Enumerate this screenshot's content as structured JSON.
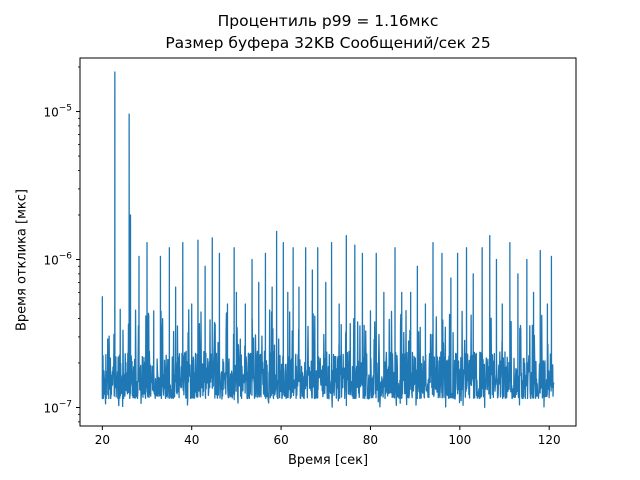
{
  "chart_data": {
    "type": "line",
    "title_lines": [
      "Процентиль p99 = 1.16мкс",
      "Размер буфера 32KB Сообщений/сек 25"
    ],
    "xlabel": "Время [сек]",
    "ylabel": "Время отклика [мкс]",
    "xlim": [
      15,
      126
    ],
    "ylim": [
      7.5e-08,
      2.3e-05
    ],
    "yscale": "log",
    "grid": false,
    "x_ticks": [
      20,
      40,
      60,
      80,
      100,
      120
    ],
    "y_ticks": [
      {
        "value": 1e-07,
        "base": "10",
        "exp": "−7"
      },
      {
        "value": 1e-06,
        "base": "10",
        "exp": "−6"
      },
      {
        "value": 1e-05,
        "base": "10",
        "exp": "−5"
      }
    ],
    "series": [
      {
        "color": "#1f77b4",
        "x_range": [
          20,
          121
        ],
        "baseline_range": [
          1.15e-07,
          2.4e-07
        ],
        "peaks": [
          {
            "x": 20.0,
            "y": 5.6e-07
          },
          {
            "x": 21.2,
            "y": 2.9e-07
          },
          {
            "x": 22.8,
            "y": 1.85e-05
          },
          {
            "x": 24.0,
            "y": 4.6e-07
          },
          {
            "x": 26.0,
            "y": 9.6e-06
          },
          {
            "x": 26.3,
            "y": 2e-06
          },
          {
            "x": 28.2,
            "y": 1.05e-06
          },
          {
            "x": 30.0,
            "y": 1.3e-06
          },
          {
            "x": 31.5,
            "y": 4.5e-07
          },
          {
            "x": 33.0,
            "y": 1.05e-06
          },
          {
            "x": 35.0,
            "y": 1.2e-06
          },
          {
            "x": 36.4,
            "y": 6.5e-07
          },
          {
            "x": 38.0,
            "y": 1.3e-06
          },
          {
            "x": 40.0,
            "y": 5e-07
          },
          {
            "x": 41.4,
            "y": 1.35e-06
          },
          {
            "x": 43.0,
            "y": 9e-07
          },
          {
            "x": 44.6,
            "y": 1.4e-06
          },
          {
            "x": 46.2,
            "y": 1.1e-06
          },
          {
            "x": 48.0,
            "y": 5e-07
          },
          {
            "x": 49.5,
            "y": 1.2e-06
          },
          {
            "x": 50.0,
            "y": 6e-07
          },
          {
            "x": 52.0,
            "y": 5e-07
          },
          {
            "x": 53.5,
            "y": 1e-06
          },
          {
            "x": 55.0,
            "y": 7e-07
          },
          {
            "x": 56.5,
            "y": 1.1e-06
          },
          {
            "x": 58.0,
            "y": 6.5e-07
          },
          {
            "x": 59.0,
            "y": 1.55e-06
          },
          {
            "x": 60.5,
            "y": 1.3e-06
          },
          {
            "x": 61.5,
            "y": 6e-07
          },
          {
            "x": 62.7,
            "y": 1.2e-06
          },
          {
            "x": 64.0,
            "y": 6.5e-07
          },
          {
            "x": 65.5,
            "y": 1.2e-06
          },
          {
            "x": 67.0,
            "y": 8.5e-07
          },
          {
            "x": 68.2,
            "y": 1.2e-06
          },
          {
            "x": 70.0,
            "y": 7e-07
          },
          {
            "x": 71.3,
            "y": 1.3e-06
          },
          {
            "x": 73.0,
            "y": 5e-07
          },
          {
            "x": 74.6,
            "y": 1.45e-06
          },
          {
            "x": 76.5,
            "y": 1.25e-06
          },
          {
            "x": 78.2,
            "y": 1.1e-06
          },
          {
            "x": 80.0,
            "y": 4.5e-07
          },
          {
            "x": 81.3,
            "y": 1.1e-06
          },
          {
            "x": 83.0,
            "y": 6e-07
          },
          {
            "x": 85.5,
            "y": 1.2e-06
          },
          {
            "x": 87.0,
            "y": 6e-07
          },
          {
            "x": 89.0,
            "y": 6e-07
          },
          {
            "x": 90.5,
            "y": 9e-07
          },
          {
            "x": 92.3,
            "y": 5e-07
          },
          {
            "x": 94.0,
            "y": 1.3e-06
          },
          {
            "x": 96.0,
            "y": 1.1e-06
          },
          {
            "x": 98.0,
            "y": 7.5e-07
          },
          {
            "x": 99.5,
            "y": 1.1e-06
          },
          {
            "x": 101.5,
            "y": 1.2e-06
          },
          {
            "x": 103.0,
            "y": 8e-07
          },
          {
            "x": 105.0,
            "y": 1.2e-06
          },
          {
            "x": 106.7,
            "y": 1.45e-06
          },
          {
            "x": 108.2,
            "y": 1e-06
          },
          {
            "x": 109.5,
            "y": 5e-07
          },
          {
            "x": 111.2,
            "y": 1.3e-06
          },
          {
            "x": 113.0,
            "y": 8e-07
          },
          {
            "x": 115.0,
            "y": 1e-06
          },
          {
            "x": 116.5,
            "y": 6e-07
          },
          {
            "x": 118.0,
            "y": 1.15e-06
          },
          {
            "x": 119.6,
            "y": 5e-07
          },
          {
            "x": 120.5,
            "y": 1.05e-06
          }
        ]
      }
    ]
  }
}
